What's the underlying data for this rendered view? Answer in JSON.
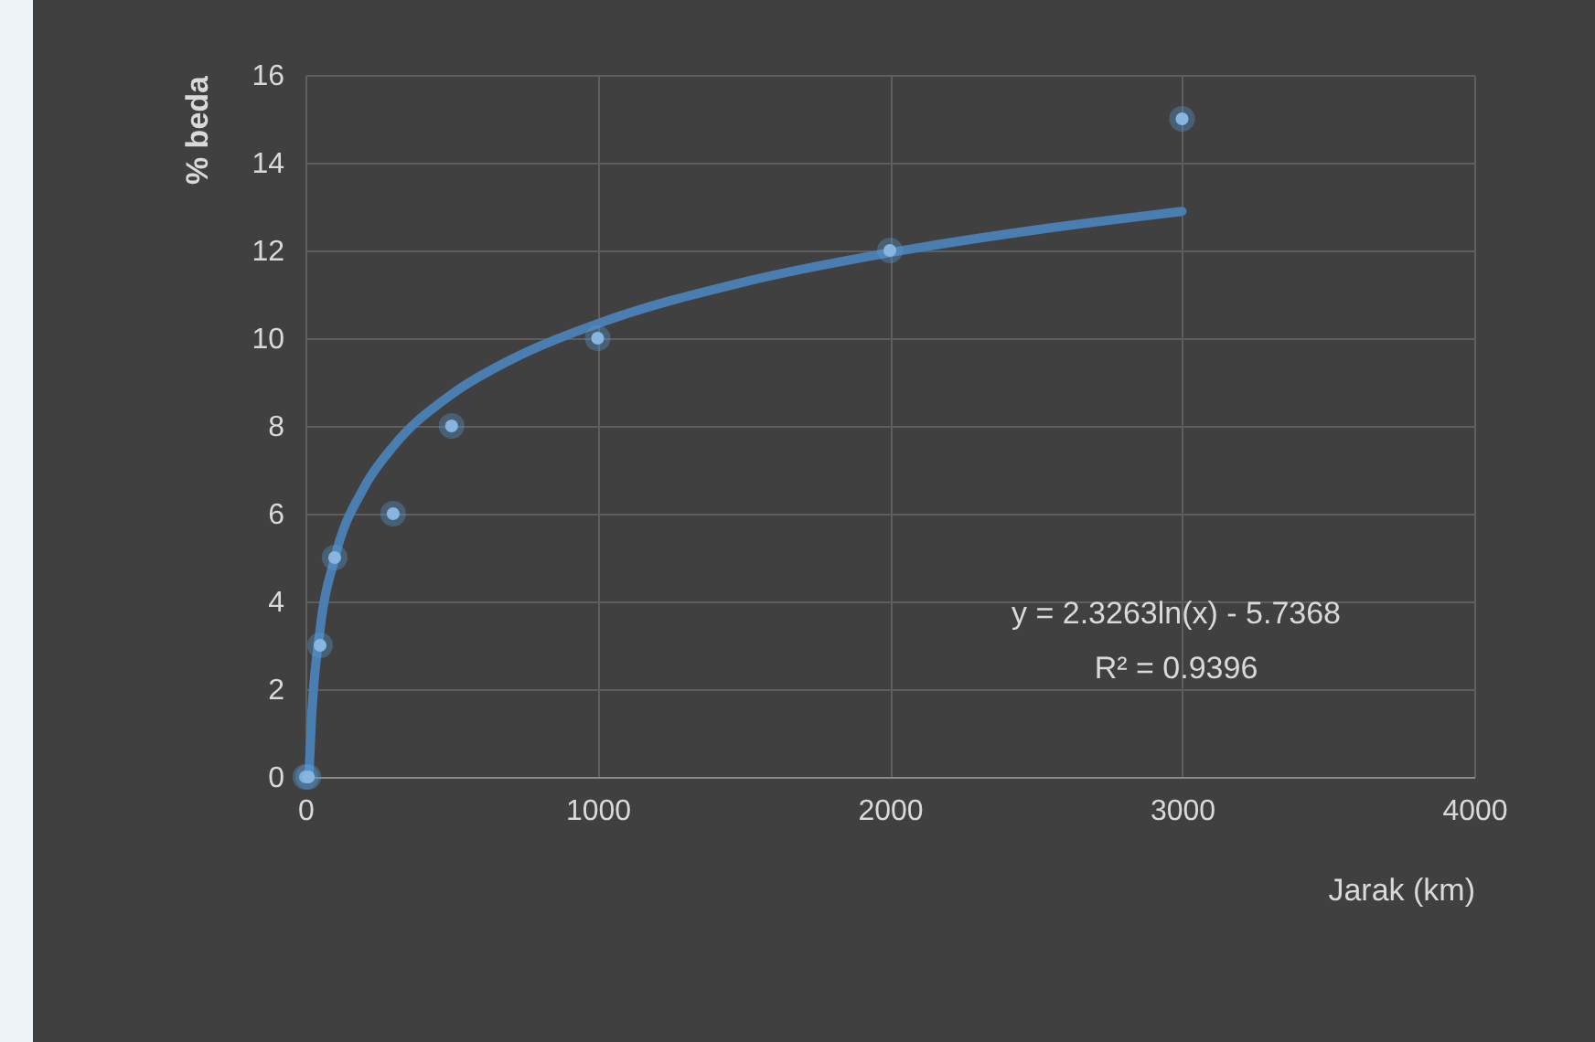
{
  "chart_data": {
    "type": "scatter",
    "xlabel": "Jarak (km)",
    "ylabel": "% beda",
    "xlim": [
      0,
      4000
    ],
    "xticks": [
      0,
      1000,
      2000,
      3000,
      4000
    ],
    "ylim": [
      0,
      16
    ],
    "yticks": [
      0,
      2,
      4,
      6,
      8,
      10,
      12,
      14,
      16
    ],
    "grid": true,
    "series": [
      {
        "marker": "circle",
        "color": "#9dc3e6",
        "x": [
          0,
          10,
          50,
          100,
          300,
          500,
          1000,
          2000,
          3000
        ],
        "values": [
          0,
          0,
          3,
          5,
          6,
          8,
          10,
          12,
          15
        ]
      },
      {
        "type": "line",
        "color": "#4a7eb0",
        "x": [
          12,
          20,
          50,
          100,
          200,
          300,
          500,
          700,
          1000,
          1500,
          2000,
          2500,
          3000
        ],
        "values": [
          0.04,
          1.23,
          3.36,
          4.98,
          6.59,
          7.53,
          8.72,
          9.5,
          10.33,
          11.28,
          11.95,
          12.47,
          12.89
        ]
      }
    ],
    "annotations": [
      "y = 2.3263ln(x) - 5.7368",
      "R² = 0.9396"
    ]
  }
}
